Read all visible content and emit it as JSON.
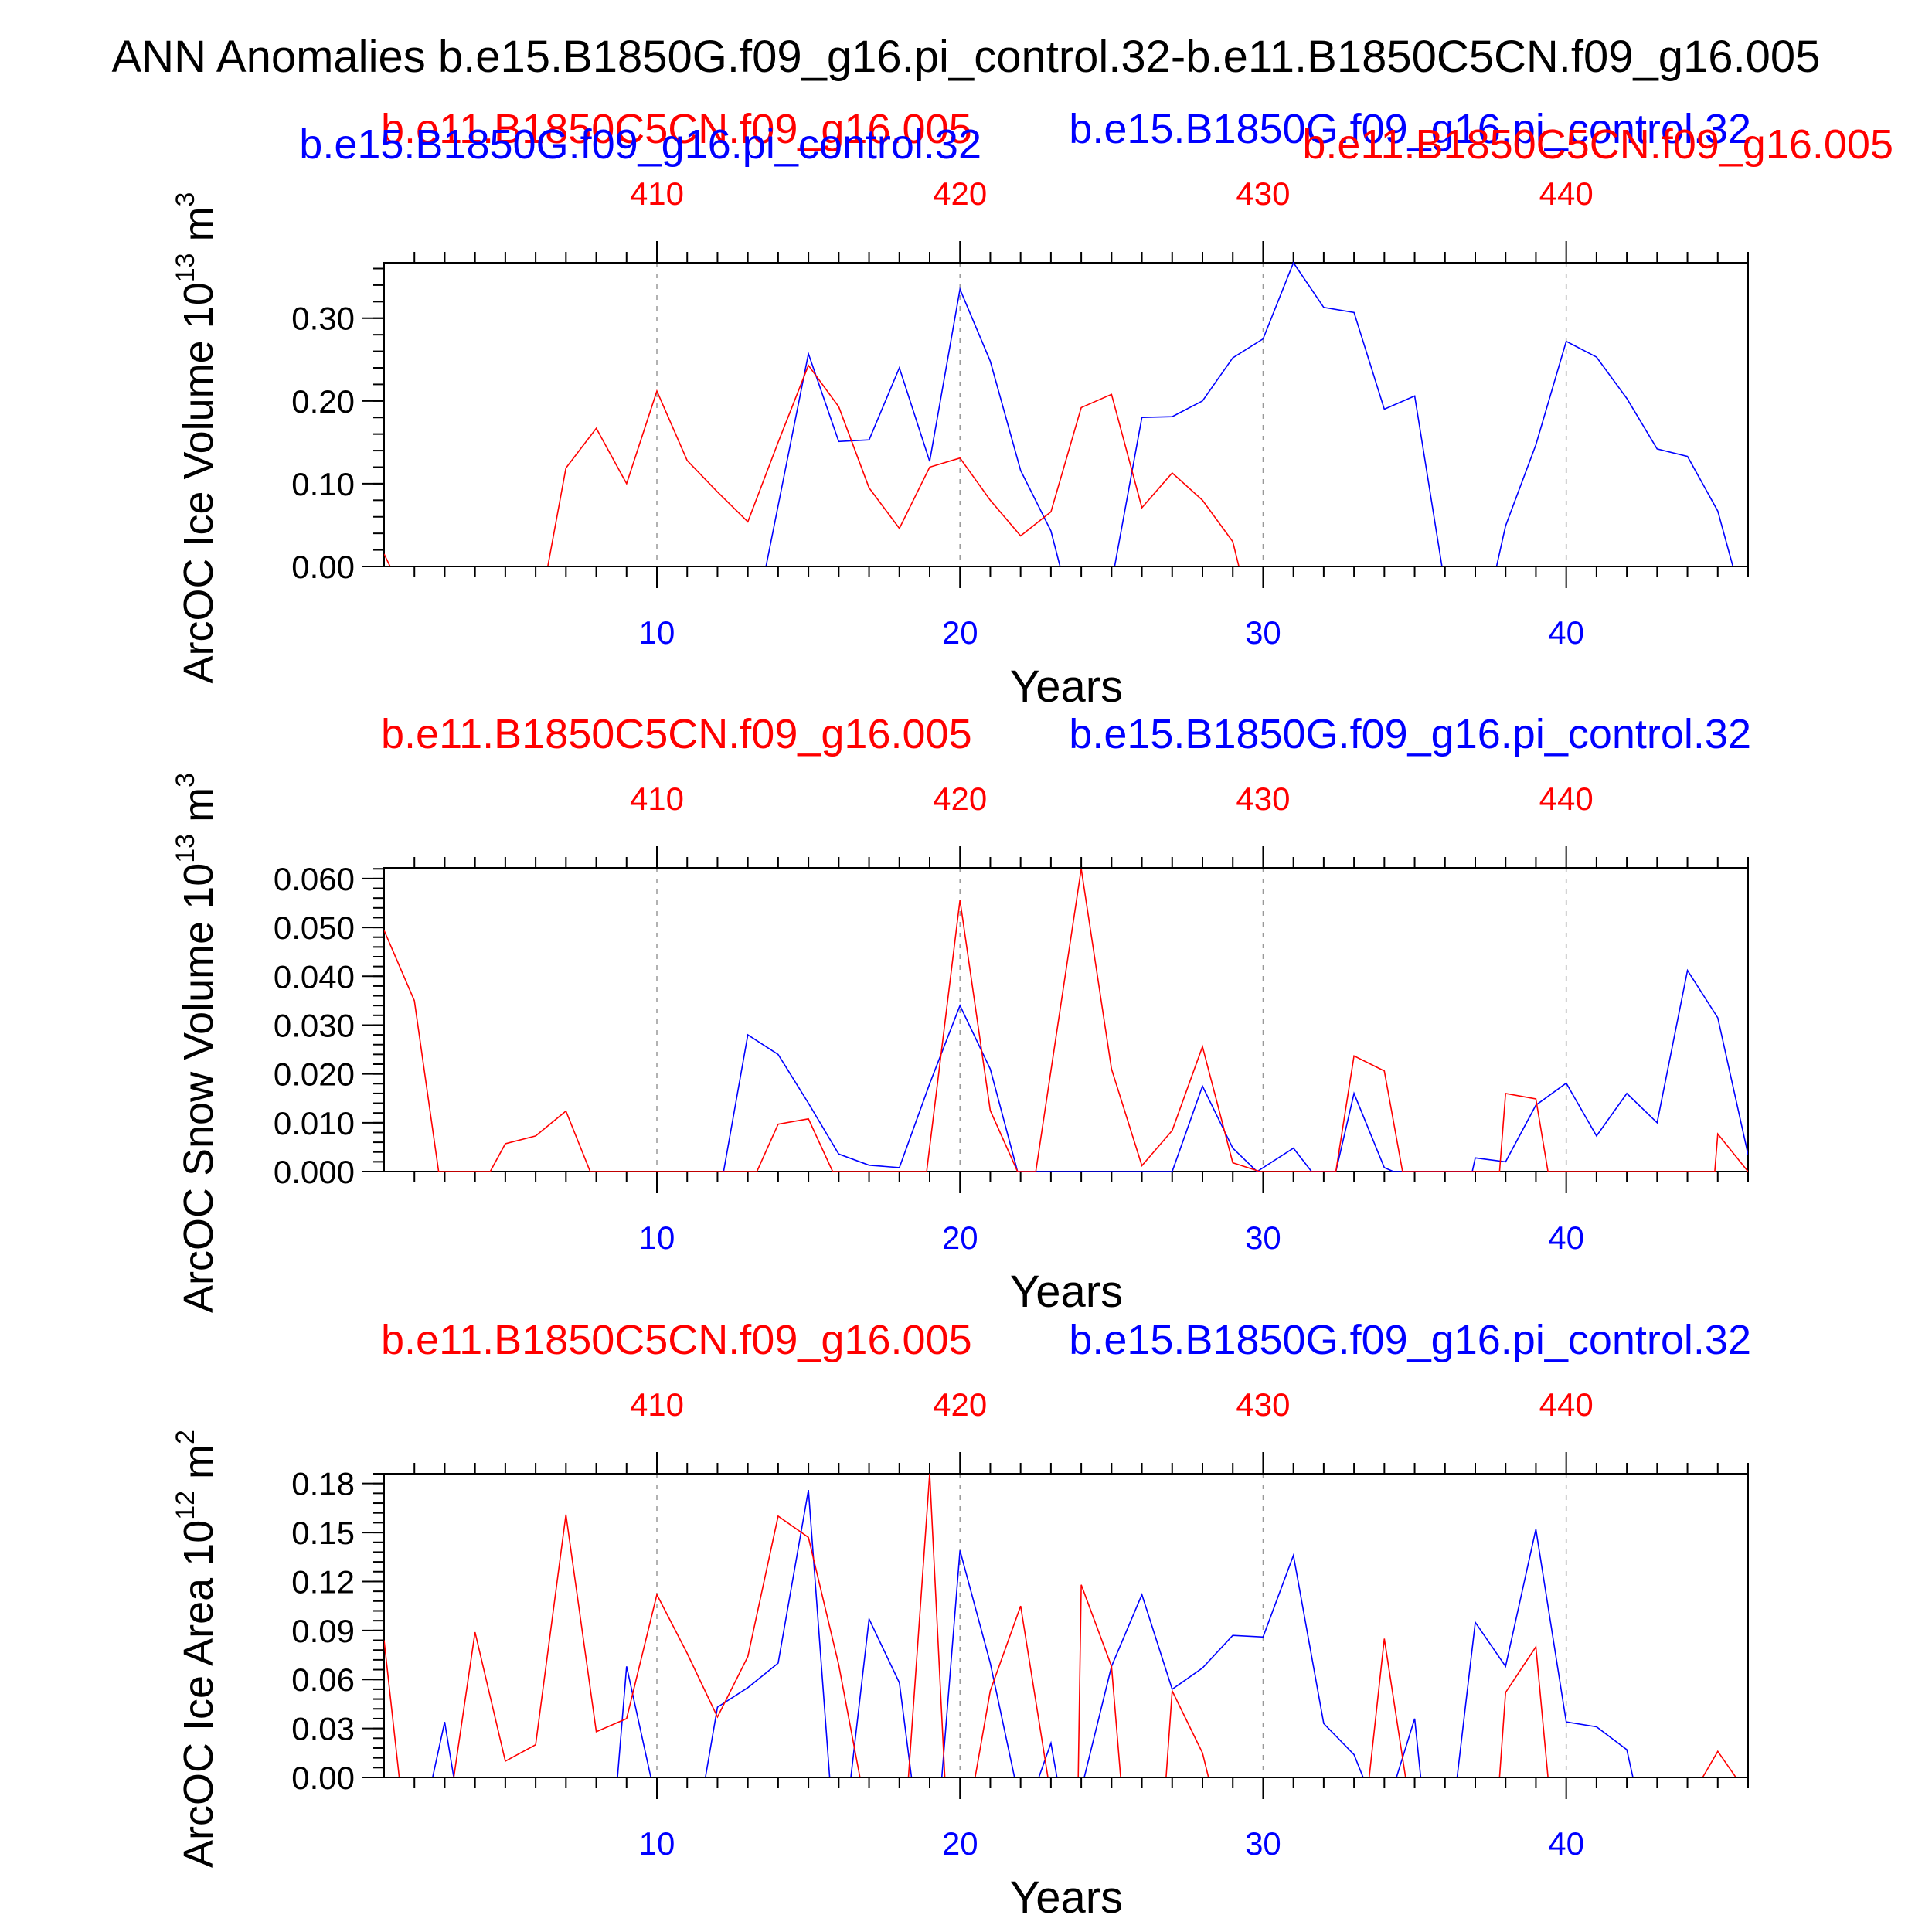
{
  "title": "ANN Anomalies b.e15.B1850G.f09_g16.pi_control.32-b.e11.B1850C5CN.f09_g16.005",
  "colors": {
    "case1": "#0000ff",
    "case2": "#ff0000",
    "axis": "#000000",
    "grid": "#999999"
  },
  "legend": {
    "case2_name": "b.e11.B1850C5CN.f09_g16.005",
    "case1_name": "b.e15.B1850G.f09_g16.pi_control.32"
  },
  "chart_data": [
    {
      "type": "line",
      "ylabel": "ArcOC Ice Volume 10",
      "ylabel_exp": "13",
      "ylabel_unit": " m",
      "ylabel_unit_exp": "3",
      "xlabel": "Years",
      "bottom_ticks": [
        "10",
        "20",
        "30",
        "40"
      ],
      "top_ticks": [
        "410",
        "420",
        "430",
        "440"
      ],
      "y_ticks": [
        "0.00",
        "0.10",
        "0.20",
        "0.30"
      ],
      "y_tick_values": [
        0,
        0.1,
        0.2,
        0.3
      ],
      "xlim": [
        1,
        46
      ],
      "ylim": [
        0,
        0.367
      ],
      "top_extra_labels": true,
      "series": [
        {
          "name": "b.e15.B1850G.f09_g16.pi_control.32",
          "color": "#0000ff",
          "x": [
            13.6,
            15,
            16,
            17,
            18,
            19,
            20,
            21,
            22,
            23,
            23.3,
            25.1,
            26,
            27,
            28,
            29,
            30,
            31,
            32,
            33,
            34,
            35,
            35.9,
            37.7,
            38,
            39,
            40,
            41,
            42,
            43,
            44,
            45,
            45.5
          ],
          "y": [
            0,
            0.257,
            0.151,
            0.153,
            0.24,
            0.127,
            0.335,
            0.248,
            0.116,
            0.043,
            0,
            0,
            0.18,
            0.181,
            0.2,
            0.252,
            0.275,
            0.367,
            0.313,
            0.307,
            0.19,
            0.206,
            0,
            0,
            0.049,
            0.147,
            0.272,
            0.253,
            0.203,
            0.142,
            0.133,
            0.067,
            0
          ]
        },
        {
          "name": "b.e11.B1850C5CN.f09_g16.005",
          "color": "#ff0000",
          "x": [
            1,
            1.2,
            6.4,
            7,
            8,
            9,
            10,
            11,
            12,
            13,
            14,
            15,
            16,
            17,
            18,
            19,
            20,
            21,
            22,
            23,
            24,
            25,
            26,
            27,
            28,
            29,
            29.2
          ],
          "y": [
            0.015,
            0,
            0,
            0.119,
            0.167,
            0.1,
            0.212,
            0.128,
            0.09,
            0.054,
            0.15,
            0.243,
            0.193,
            0.095,
            0.046,
            0.12,
            0.131,
            0.08,
            0.037,
            0.066,
            0.192,
            0.208,
            0.071,
            0.113,
            0.08,
            0.03,
            0
          ]
        }
      ]
    },
    {
      "type": "line",
      "ylabel": "ArcOC Snow Volume 10",
      "ylabel_exp": "13",
      "ylabel_unit": " m",
      "ylabel_unit_exp": "3",
      "xlabel": "Years",
      "bottom_ticks": [
        "10",
        "20",
        "30",
        "40"
      ],
      "top_ticks": [
        "410",
        "420",
        "430",
        "440"
      ],
      "y_ticks": [
        "0.000",
        "0.010",
        "0.020",
        "0.030",
        "0.040",
        "0.050",
        "0.060"
      ],
      "y_tick_values": [
        0,
        0.01,
        0.02,
        0.03,
        0.04,
        0.05,
        0.06
      ],
      "xlim": [
        1,
        46
      ],
      "ylim": [
        0,
        0.0622
      ],
      "top_extra_labels": false,
      "series": [
        {
          "name": "b.e15.B1850G.f09_g16.pi_control.32",
          "color": "#0000ff",
          "x": [
            12.2,
            13,
            14,
            15,
            16,
            17,
            18,
            19,
            20,
            21,
            21.9,
            27,
            28,
            29,
            29.8,
            31,
            31.6,
            32.4,
            33,
            34,
            34.3,
            36.9,
            37,
            38,
            39,
            40,
            41,
            42,
            43,
            44,
            45,
            46
          ],
          "y": [
            0,
            0.028,
            0.024,
            0.014,
            0.0036,
            0.0013,
            0.0008,
            0.018,
            0.034,
            0.021,
            0,
            0,
            0.0175,
            0.0048,
            0,
            0.0048,
            0,
            0,
            0.016,
            0.0008,
            0,
            0,
            0.0028,
            0.002,
            0.0136,
            0.0181,
            0.0073,
            0.016,
            0.01,
            0.0412,
            0.0315,
            0.0035
          ]
        },
        {
          "name": "b.e11.B1850C5CN.f09_g16.005",
          "color": "#ff0000",
          "x": [
            1,
            2,
            2.8,
            4.5,
            5,
            6,
            7,
            7.8,
            12,
            13.3,
            14,
            15,
            15.8,
            18.9,
            20,
            21,
            21.9,
            22.5,
            24,
            25,
            26,
            27,
            28,
            29,
            29.9,
            32.4,
            33,
            34,
            34.6,
            37.8,
            38,
            39,
            39.4,
            44.9,
            45,
            46
          ],
          "y": [
            0.0494,
            0.035,
            0,
            0,
            0.0057,
            0.0073,
            0.0124,
            0,
            0,
            0,
            0.0097,
            0.0108,
            0,
            0,
            0.0556,
            0.0125,
            0,
            0,
            0.062,
            0.021,
            0.0012,
            0.0084,
            0.0256,
            0.0018,
            0,
            0,
            0.0237,
            0.0206,
            0,
            0,
            0.016,
            0.0149,
            0,
            0,
            0.0077,
            0
          ]
        }
      ]
    },
    {
      "type": "line",
      "ylabel": "ArcOC Ice Area 10",
      "ylabel_exp": "12",
      "ylabel_unit": " m",
      "ylabel_unit_exp": "2",
      "xlabel": "Years",
      "bottom_ticks": [
        "10",
        "20",
        "30",
        "40"
      ],
      "top_ticks": [
        "410",
        "420",
        "430",
        "440"
      ],
      "y_ticks": [
        "0.00",
        "0.03",
        "0.06",
        "0.09",
        "0.12",
        "0.15",
        "0.18"
      ],
      "y_tick_values": [
        0,
        0.03,
        0.06,
        0.09,
        0.12,
        0.15,
        0.18
      ],
      "xlim": [
        1,
        46
      ],
      "ylim": [
        0,
        0.186
      ],
      "top_extra_labels": false,
      "series": [
        {
          "name": "b.e15.B1850G.f09_g16.pi_control.32",
          "color": "#0000ff",
          "x": [
            2.6,
            3,
            3.3,
            8.7,
            9,
            9.8,
            11.6,
            12,
            13,
            14,
            15,
            15.7,
            16.4,
            17,
            18,
            18.4,
            19.4,
            20,
            21,
            21.8,
            22.6,
            23,
            23.2,
            24.1,
            25,
            26,
            27,
            28,
            29,
            30,
            31,
            32,
            33,
            33.3,
            34.4,
            35,
            35.2,
            36.4,
            37,
            38,
            39,
            40,
            41,
            42,
            42.2
          ],
          "y": [
            0,
            0.034,
            0,
            0,
            0.068,
            0,
            0,
            0.043,
            0.055,
            0.07,
            0.176,
            0,
            0,
            0.097,
            0.058,
            0,
            0,
            0.139,
            0.07,
            0,
            0,
            0.021,
            0,
            0,
            0.068,
            0.112,
            0.054,
            0.067,
            0.087,
            0.086,
            0.136,
            0.033,
            0.014,
            0,
            0,
            0.036,
            0,
            0,
            0.095,
            0.068,
            0.152,
            0.034,
            0.031,
            0.017,
            0
          ]
        },
        {
          "name": "b.e11.B1850C5CN.f09_g16.005",
          "color": "#ff0000",
          "x": [
            1,
            1.5,
            3.3,
            4,
            5,
            6,
            7,
            8,
            9,
            10,
            11,
            12,
            13,
            14,
            15,
            16,
            16.7,
            18.3,
            19,
            19.5,
            20.5,
            21,
            22,
            22.9,
            23.9,
            24,
            25,
            25.3,
            26.8,
            27,
            28,
            28.2,
            33.5,
            34,
            34.7,
            37.8,
            38,
            39,
            39.4,
            44.5,
            45,
            45.6
          ],
          "y": [
            0.084,
            0,
            0,
            0.089,
            0.01,
            0.02,
            0.161,
            0.028,
            0.036,
            0.112,
            0.076,
            0.037,
            0.074,
            0.16,
            0.147,
            0.069,
            0,
            0,
            0.186,
            0,
            0,
            0.053,
            0.105,
            0,
            0,
            0.118,
            0.068,
            0,
            0,
            0.053,
            0.015,
            0,
            0,
            0.085,
            0,
            0,
            0.052,
            0.08,
            0,
            0,
            0.016,
            0
          ]
        }
      ]
    }
  ]
}
